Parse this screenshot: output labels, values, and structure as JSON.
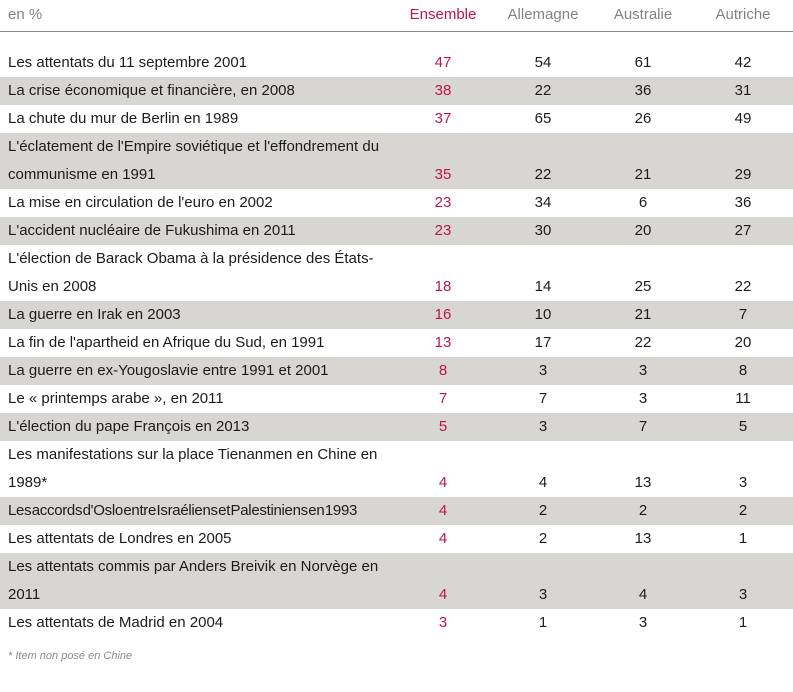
{
  "colors": {
    "accent": "#bd1450",
    "header_text": "#87827e",
    "body_text": "#1c1c1c",
    "row_shade": "#d8d6d3",
    "rule": "#8c8a88",
    "footnote_text": "#8c8a88"
  },
  "chart_data": {
    "type": "table",
    "unit_label": "en %",
    "columns": [
      "Ensemble",
      "Allemagne",
      "Australie",
      "Autriche"
    ],
    "rows": [
      {
        "label": "Les attentats du 11 septembre 2001",
        "values": [
          47,
          54,
          61,
          42
        ]
      },
      {
        "label": "La crise économique et financière, en 2008",
        "values": [
          38,
          22,
          36,
          31
        ]
      },
      {
        "label": "La chute du mur de Berlin en 1989",
        "values": [
          37,
          65,
          26,
          49
        ]
      },
      {
        "label": "L'éclatement de l'Empire soviétique et l'effondrement du communisme en 1991",
        "values": [
          35,
          22,
          21,
          29
        ]
      },
      {
        "label": "La mise en circulation de l'euro en 2002",
        "values": [
          23,
          34,
          6,
          36
        ]
      },
      {
        "label": "L'accident nucléaire de Fukushima en 2011",
        "values": [
          23,
          30,
          20,
          27
        ]
      },
      {
        "label": "L'élection de Barack Obama à la présidence des États-Unis en 2008",
        "values": [
          18,
          14,
          25,
          22
        ]
      },
      {
        "label": "La guerre en Irak en 2003",
        "values": [
          16,
          10,
          21,
          7
        ]
      },
      {
        "label": "La fin de l'apartheid en Afrique du Sud, en 1991",
        "values": [
          13,
          17,
          22,
          20
        ]
      },
      {
        "label": "La guerre en ex-Yougoslavie entre 1991 et 2001",
        "values": [
          8,
          3,
          3,
          8
        ]
      },
      {
        "label": "Le « printemps arabe », en 2011",
        "values": [
          7,
          7,
          3,
          11
        ]
      },
      {
        "label": "L'élection du pape François en 2013",
        "values": [
          5,
          3,
          7,
          5
        ]
      },
      {
        "label": "Les manifestations sur la place Tienanmen en Chine en 1989*",
        "values": [
          4,
          4,
          13,
          3
        ]
      },
      {
        "label": "Les accords d'Oslo entre Israéliens et Palestiniens en 1993",
        "values": [
          4,
          2,
          2,
          2
        ]
      },
      {
        "label": "Les attentats de Londres en 2005",
        "values": [
          4,
          2,
          13,
          1
        ]
      },
      {
        "label": "Les attentats commis par Anders Breivik en Norvège en 2011",
        "values": [
          4,
          3,
          4,
          3
        ]
      },
      {
        "label": "Les attentats de Madrid en 2004",
        "values": [
          3,
          1,
          3,
          1
        ]
      }
    ],
    "footnote": "* Item non posé en Chine"
  }
}
